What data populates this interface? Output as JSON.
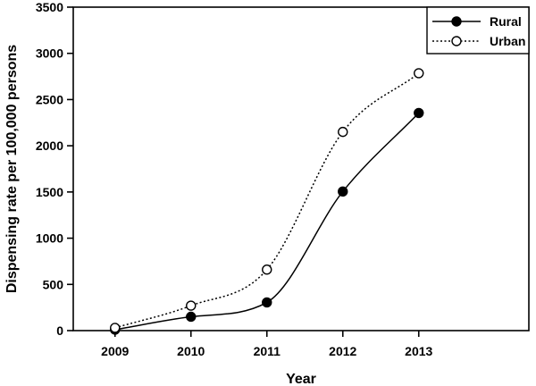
{
  "chart_data": {
    "type": "line",
    "title": "",
    "xlabel": "Year",
    "ylabel": "Dispensing rate per 100,000 persons",
    "x": [
      2009,
      2010,
      2011,
      2012,
      2013
    ],
    "x_ticks": [
      "2009",
      "2010",
      "2011",
      "2012",
      "2013"
    ],
    "xlim": [
      2008.45,
      2014.45
    ],
    "ylim": [
      0,
      3500
    ],
    "y_ticks": [
      "0",
      "500",
      "1000",
      "1500",
      "2000",
      "2500",
      "3000",
      "3500"
    ],
    "grid": false,
    "legend_position": "top-right",
    "series": [
      {
        "name": "Rural",
        "marker": "filled-circle",
        "line_style": "solid",
        "color": "#000000",
        "values": [
          10,
          150,
          305,
          1505,
          2355
        ]
      },
      {
        "name": "Urban",
        "marker": "open-circle",
        "line_style": "dotted",
        "color": "#000000",
        "values": [
          30,
          270,
          660,
          2150,
          2785
        ]
      }
    ]
  }
}
